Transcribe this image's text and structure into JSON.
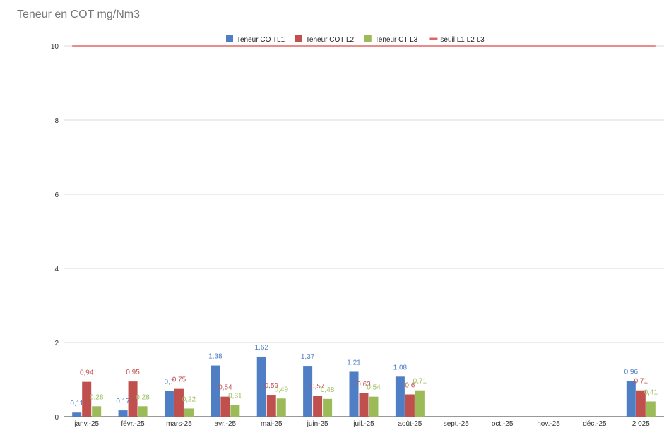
{
  "chart_data": {
    "type": "bar",
    "title": "Teneur en COT mg/Nm3",
    "xlabel": "",
    "ylabel": "",
    "ylim": [
      0,
      10
    ],
    "yticks": [
      0,
      2,
      4,
      6,
      8,
      10
    ],
    "ytick_labels": [
      "0",
      "2",
      "4",
      "6",
      "8",
      "10"
    ],
    "grid": true,
    "legend_position": "top",
    "categories": [
      "janv.-25",
      "févr.-25",
      "mars-25",
      "avr.-25",
      "mai-25",
      "juin-25",
      "juil.-25",
      "août-25",
      "sept.-25",
      "oct.-25",
      "nov.-25",
      "déc.-25",
      "2 025"
    ],
    "series": [
      {
        "name": "Teneur CO TL1",
        "color": "#4f7ec4",
        "values": [
          0.11,
          0.17,
          0.7,
          1.38,
          1.62,
          1.37,
          1.21,
          1.08,
          null,
          null,
          null,
          null,
          0.96
        ],
        "labels": [
          "0,11",
          "0,17",
          "0,7",
          "1,38",
          "1,62",
          "1,37",
          "1,21",
          "1,08",
          null,
          null,
          null,
          null,
          "0,96"
        ]
      },
      {
        "name": "Teneur COT L2",
        "color": "#c0504d",
        "values": [
          0.94,
          0.95,
          0.75,
          0.54,
          0.59,
          0.57,
          0.63,
          0.6,
          null,
          null,
          null,
          null,
          0.71
        ],
        "labels": [
          "0,94",
          "0,95",
          "0,75",
          "0,54",
          "0,59",
          "0,57",
          "0,63",
          "0,6",
          null,
          null,
          null,
          null,
          "0,71"
        ]
      },
      {
        "name": "Teneur CT L3",
        "color": "#9bbb59",
        "values": [
          0.28,
          0.28,
          0.22,
          0.31,
          0.49,
          0.48,
          0.54,
          0.71,
          null,
          null,
          null,
          null,
          0.41
        ],
        "labels": [
          "0,28",
          "0,28",
          "0,22",
          "0,31",
          "0,49",
          "0,48",
          "0,54",
          "0,71",
          null,
          null,
          null,
          null,
          "0,41"
        ]
      }
    ],
    "threshold": {
      "name": "seuil L1 L2 L3",
      "value": 10,
      "color": "#e06666"
    }
  }
}
